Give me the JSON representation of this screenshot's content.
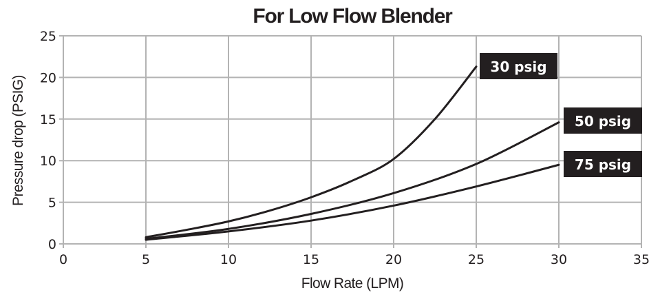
{
  "chart_data": {
    "type": "line",
    "title": "For Low Flow Blender",
    "xlabel": "Flow Rate (LPM)",
    "ylabel": "Pressure drop (PSIG)",
    "xlim": [
      0,
      35
    ],
    "ylim": [
      0,
      25
    ],
    "xticks": [
      0,
      5,
      10,
      15,
      20,
      25,
      30,
      35
    ],
    "yticks": [
      0,
      5,
      10,
      15,
      20,
      25
    ],
    "grid": true,
    "legend_position": "inline labels at curve ends",
    "series": [
      {
        "name": "30 psig",
        "x": [
          5,
          7.5,
          10,
          12.5,
          15,
          17.5,
          20,
          22.5,
          25
        ],
        "y": [
          0.8,
          1.7,
          2.7,
          4.0,
          5.6,
          7.6,
          10.2,
          15.0,
          21.3
        ]
      },
      {
        "name": "50 psig",
        "x": [
          5,
          10,
          15,
          20,
          25,
          30
        ],
        "y": [
          0.6,
          1.8,
          3.6,
          6.1,
          9.6,
          14.6
        ]
      },
      {
        "name": "75 psig",
        "x": [
          5,
          10,
          15,
          20,
          25,
          30
        ],
        "y": [
          0.5,
          1.5,
          2.8,
          4.6,
          6.9,
          9.5
        ]
      }
    ]
  },
  "colors": {
    "ink": "#231f20",
    "grid": "#b3b3b3",
    "label_bg": "#231f20",
    "label_text": "#ffffff"
  }
}
